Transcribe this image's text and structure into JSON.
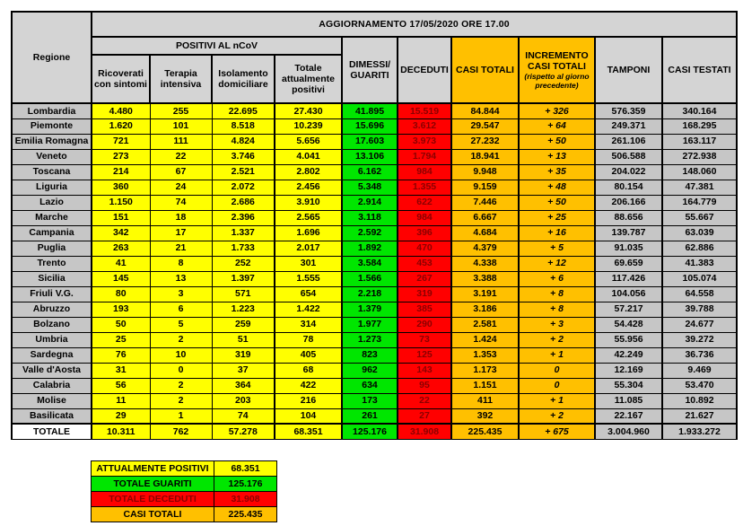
{
  "title": "AGGIORNAMENTO 17/05/2020 ORE 17.00",
  "header": {
    "regione": "Regione",
    "positivi_group": "POSITIVI AL nCoV",
    "ricoverati": "Ricoverati con sintomi",
    "terapia": "Terapia intensiva",
    "isolamento": "Isolamento domiciliare",
    "totale_positivi": "Totale attualmente positivi",
    "dimessi": "DIMESSI/ GUARITI",
    "deceduti": "DECEDUTI",
    "casi_totali": "CASI TOTALI",
    "incremento_line1": "INCREMENTO",
    "incremento_line2": "CASI TOTALI",
    "incremento_note": "(rispetto al giorno precedente)",
    "tamponi": "TAMPONI",
    "casi_testati": "CASI TESTATI"
  },
  "chart_data": {
    "type": "table",
    "title": "AGGIORNAMENTO 17/05/2020 ORE 17.00",
    "columns": [
      "Regione",
      "Ricoverati con sintomi",
      "Terapia intensiva",
      "Isolamento domiciliare",
      "Totale attualmente positivi",
      "DIMESSI/GUARITI",
      "DECEDUTI",
      "CASI TOTALI",
      "INCREMENTO CASI TOTALI (rispetto al giorno precedente)",
      "TAMPONI",
      "CASI TESTATI"
    ],
    "rows": [
      [
        "Lombardia",
        "4.480",
        "255",
        "22.695",
        "27.430",
        "41.895",
        "15.519",
        "84.844",
        "+ 326",
        "576.359",
        "340.164"
      ],
      [
        "Piemonte",
        "1.620",
        "101",
        "8.518",
        "10.239",
        "15.696",
        "3.612",
        "29.547",
        "+ 64",
        "249.371",
        "168.295"
      ],
      [
        "Emilia Romagna",
        "721",
        "111",
        "4.824",
        "5.656",
        "17.603",
        "3.973",
        "27.232",
        "+ 50",
        "261.106",
        "163.117"
      ],
      [
        "Veneto",
        "273",
        "22",
        "3.746",
        "4.041",
        "13.106",
        "1.794",
        "18.941",
        "+ 13",
        "506.588",
        "272.938"
      ],
      [
        "Toscana",
        "214",
        "67",
        "2.521",
        "2.802",
        "6.162",
        "984",
        "9.948",
        "+ 35",
        "204.022",
        "148.060"
      ],
      [
        "Liguria",
        "360",
        "24",
        "2.072",
        "2.456",
        "5.348",
        "1.355",
        "9.159",
        "+ 48",
        "80.154",
        "47.381"
      ],
      [
        "Lazio",
        "1.150",
        "74",
        "2.686",
        "3.910",
        "2.914",
        "622",
        "7.446",
        "+ 50",
        "206.166",
        "164.779"
      ],
      [
        "Marche",
        "151",
        "18",
        "2.396",
        "2.565",
        "3.118",
        "984",
        "6.667",
        "+ 25",
        "88.656",
        "55.667"
      ],
      [
        "Campania",
        "342",
        "17",
        "1.337",
        "1.696",
        "2.592",
        "396",
        "4.684",
        "+ 16",
        "139.787",
        "63.039"
      ],
      [
        "Puglia",
        "263",
        "21",
        "1.733",
        "2.017",
        "1.892",
        "470",
        "4.379",
        "+ 5",
        "91.035",
        "62.886"
      ],
      [
        "Trento",
        "41",
        "8",
        "252",
        "301",
        "3.584",
        "453",
        "4.338",
        "+ 12",
        "69.659",
        "41.383"
      ],
      [
        "Sicilia",
        "145",
        "13",
        "1.397",
        "1.555",
        "1.566",
        "267",
        "3.388",
        "+ 6",
        "117.426",
        "105.074"
      ],
      [
        "Friuli V.G.",
        "80",
        "3",
        "571",
        "654",
        "2.218",
        "319",
        "3.191",
        "+ 8",
        "104.056",
        "64.558"
      ],
      [
        "Abruzzo",
        "193",
        "6",
        "1.223",
        "1.422",
        "1.379",
        "385",
        "3.186",
        "+ 8",
        "57.217",
        "39.788"
      ],
      [
        "Bolzano",
        "50",
        "5",
        "259",
        "314",
        "1.977",
        "290",
        "2.581",
        "+ 3",
        "54.428",
        "24.677"
      ],
      [
        "Umbria",
        "25",
        "2",
        "51",
        "78",
        "1.273",
        "73",
        "1.424",
        "+ 2",
        "55.956",
        "39.272"
      ],
      [
        "Sardegna",
        "76",
        "10",
        "319",
        "405",
        "823",
        "125",
        "1.353",
        "+ 1",
        "42.249",
        "36.736"
      ],
      [
        "Valle d'Aosta",
        "31",
        "0",
        "37",
        "68",
        "962",
        "143",
        "1.173",
        "0",
        "12.169",
        "9.469"
      ],
      [
        "Calabria",
        "56",
        "2",
        "364",
        "422",
        "634",
        "95",
        "1.151",
        "0",
        "55.304",
        "53.470"
      ],
      [
        "Molise",
        "11",
        "2",
        "203",
        "216",
        "173",
        "22",
        "411",
        "+ 1",
        "11.085",
        "10.892"
      ],
      [
        "Basilicata",
        "29",
        "1",
        "74",
        "104",
        "261",
        "27",
        "392",
        "+ 2",
        "22.167",
        "21.627"
      ]
    ],
    "totale": [
      "TOTALE",
      "10.311",
      "762",
      "57.278",
      "68.351",
      "125.176",
      "31.908",
      "225.435",
      "+ 675",
      "3.004.960",
      "1.933.272"
    ]
  },
  "legend": [
    {
      "label": "ATTUALMENTE POSITIVI",
      "value": "68.351",
      "color": "yellow"
    },
    {
      "label": "TOTALE GUARITI",
      "value": "125.176",
      "color": "green"
    },
    {
      "label": "TOTALE DECEDUTI",
      "value": "31.908",
      "color": "red"
    },
    {
      "label": "CASI TOTALI",
      "value": "225.435",
      "color": "orange"
    }
  ],
  "colors": {
    "yellow": "#FFFF00",
    "green": "#00E600",
    "red": "#FF0000",
    "orange": "#FFC000",
    "darkred": "#8B0000",
    "gray-header": "#D4D4D4",
    "gray-cell": "#C6C6C6"
  }
}
